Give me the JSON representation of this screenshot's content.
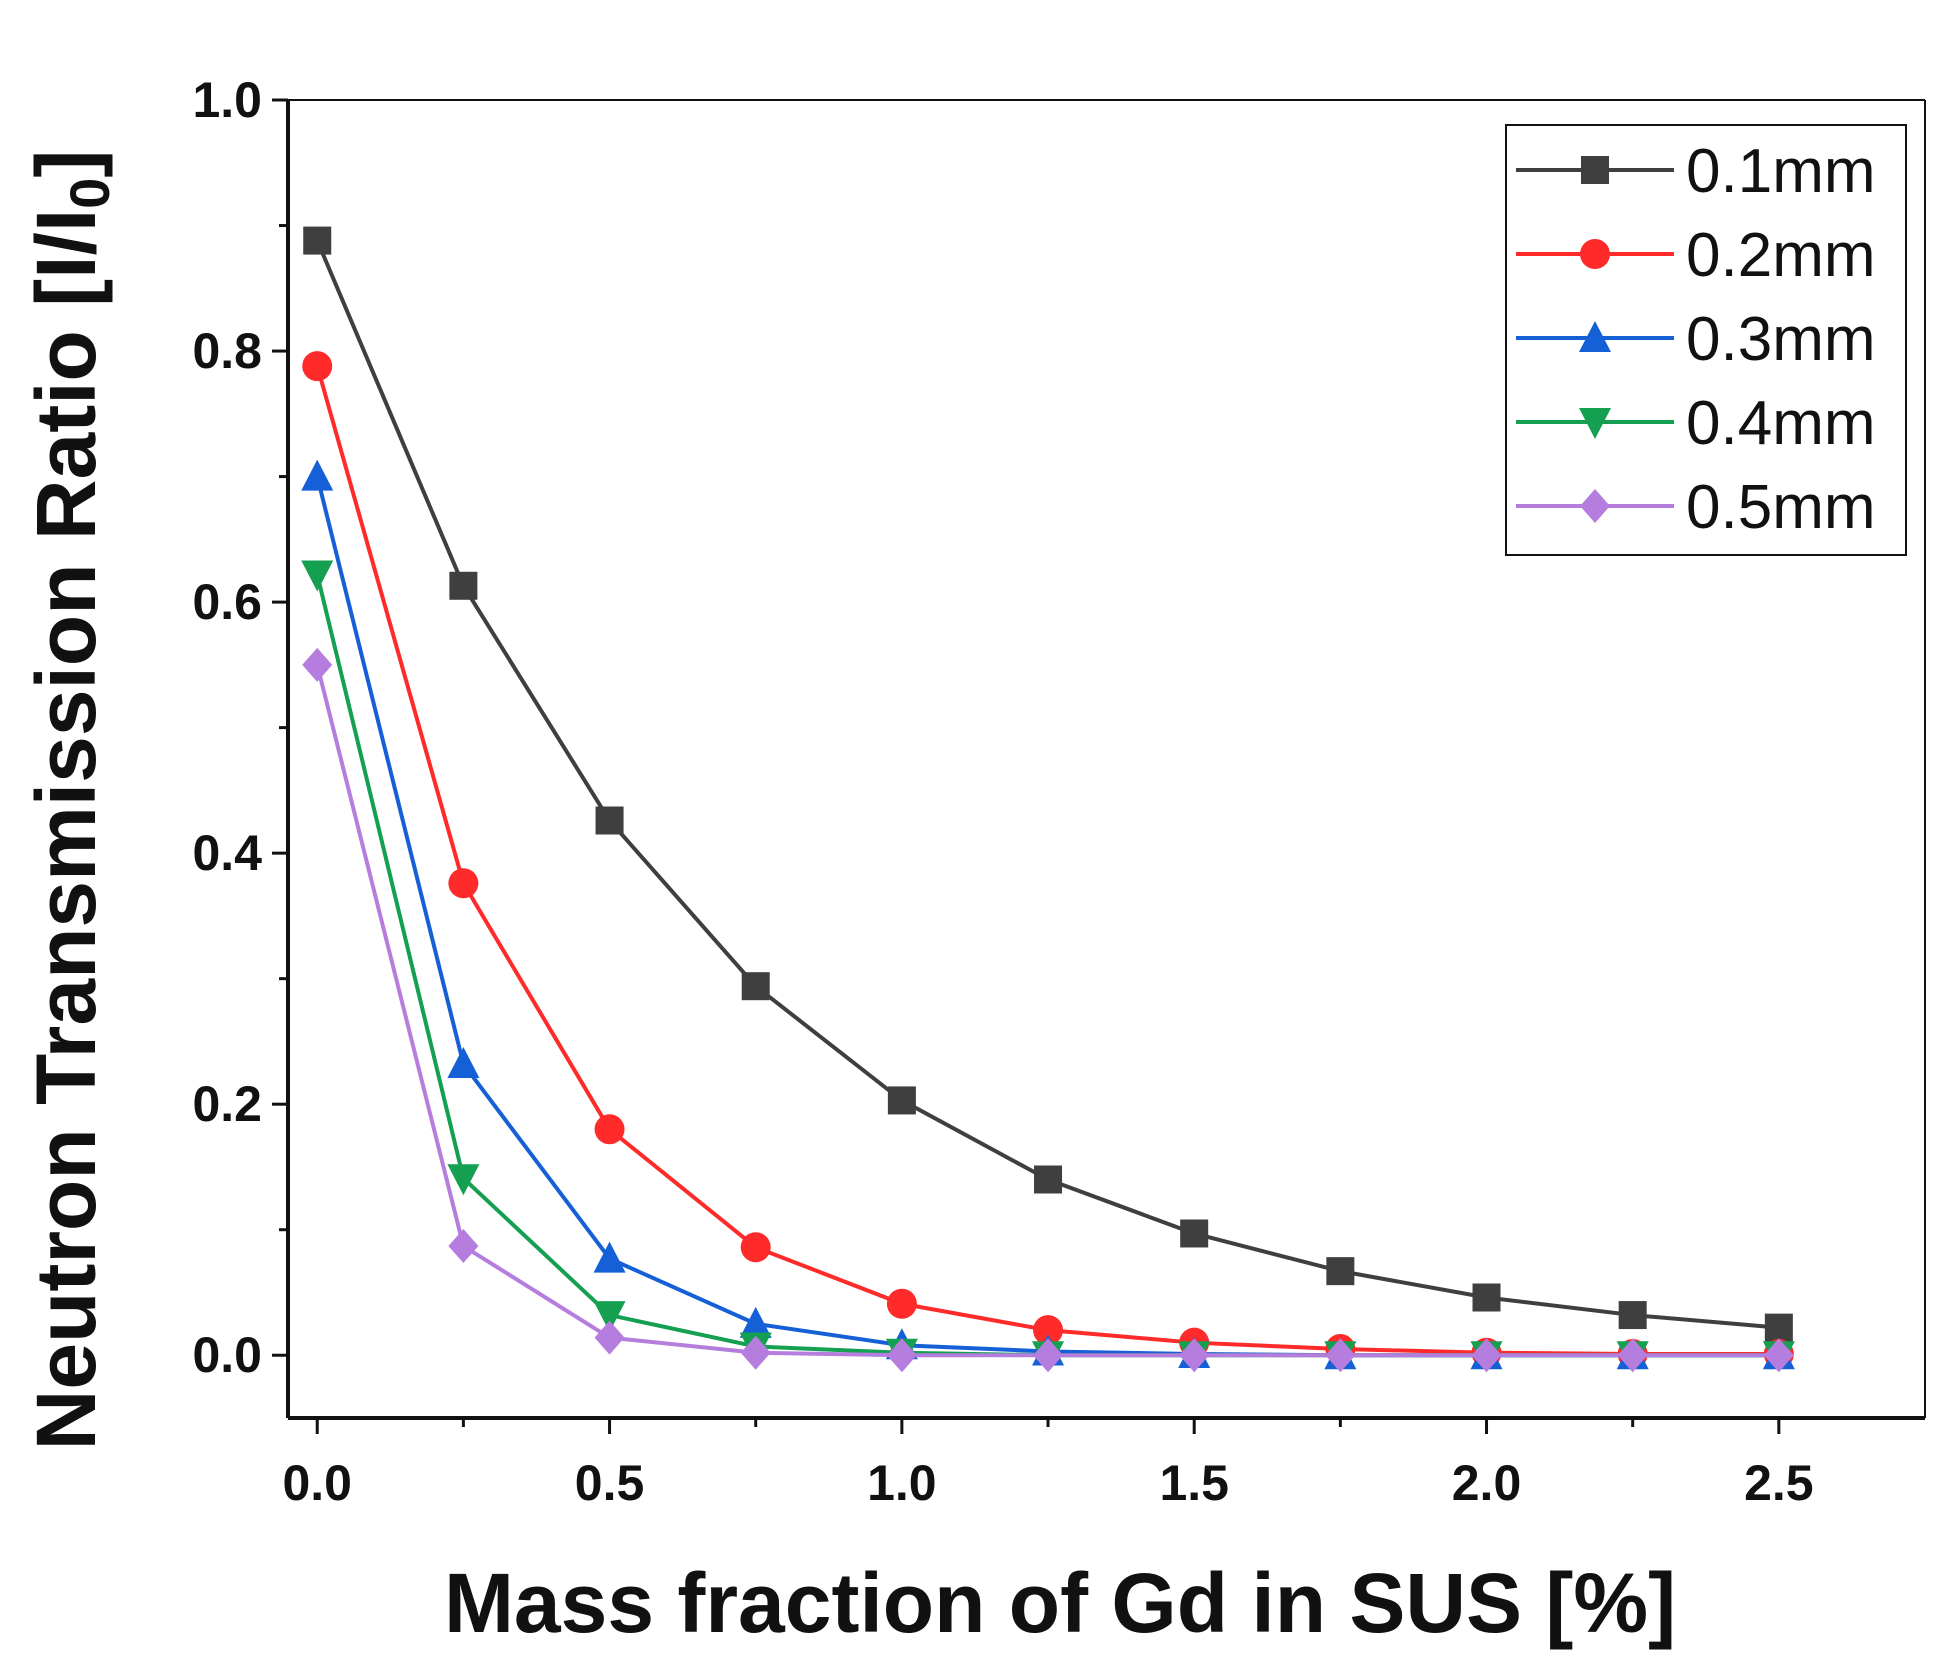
{
  "chart_data": {
    "type": "line",
    "title": "",
    "xlabel": "Mass fraction of Gd in SUS [%]",
    "ylabel": "Neutron Transmission Ratio [I/I",
    "ylabel_subscript": "0",
    "ylabel_suffix": "]",
    "xlim": [
      -0.05,
      2.75
    ],
    "ylim": [
      -0.05,
      1.0
    ],
    "x_ticks": [
      0.0,
      0.5,
      1.0,
      1.5,
      2.0,
      2.5
    ],
    "x_tick_labels": [
      "0.0",
      "0.5",
      "1.0",
      "1.5",
      "2.0",
      "2.5"
    ],
    "y_ticks": [
      0.0,
      0.2,
      0.4,
      0.6,
      0.8,
      1.0
    ],
    "y_tick_labels": [
      "0.0",
      "0.2",
      "0.4",
      "0.6",
      "0.8",
      "1.0"
    ],
    "grid": false,
    "legend_position": "top-right",
    "x": [
      0.0,
      0.25,
      0.5,
      0.75,
      1.0,
      1.25,
      1.5,
      1.75,
      2.0,
      2.25,
      2.5
    ],
    "series": [
      {
        "name": "0.1mm",
        "color": "#3f3f3f",
        "marker": "square",
        "values": [
          0.888,
          0.613,
          0.426,
          0.294,
          0.203,
          0.14,
          0.097,
          0.067,
          0.046,
          0.032,
          0.022
        ]
      },
      {
        "name": "0.2mm",
        "color": "#ff2b2b",
        "marker": "circle",
        "values": [
          0.788,
          0.376,
          0.18,
          0.086,
          0.041,
          0.02,
          0.01,
          0.005,
          0.002,
          0.001,
          0.001
        ]
      },
      {
        "name": "0.3mm",
        "color": "#1560d6",
        "marker": "triangle-up",
        "values": [
          0.7,
          0.232,
          0.077,
          0.025,
          0.008,
          0.003,
          0.001,
          0.0,
          0.0,
          0.0,
          0.0
        ]
      },
      {
        "name": "0.4mm",
        "color": "#14a050",
        "marker": "triangle-down",
        "values": [
          0.622,
          0.141,
          0.032,
          0.007,
          0.002,
          0.0,
          0.0,
          0.0,
          0.0,
          0.0,
          0.0
        ]
      },
      {
        "name": "0.5mm",
        "color": "#b57ddd",
        "marker": "diamond",
        "values": [
          0.55,
          0.087,
          0.014,
          0.002,
          0.0,
          0.0,
          0.0,
          0.0,
          0.0,
          0.0,
          0.0
        ]
      }
    ]
  }
}
